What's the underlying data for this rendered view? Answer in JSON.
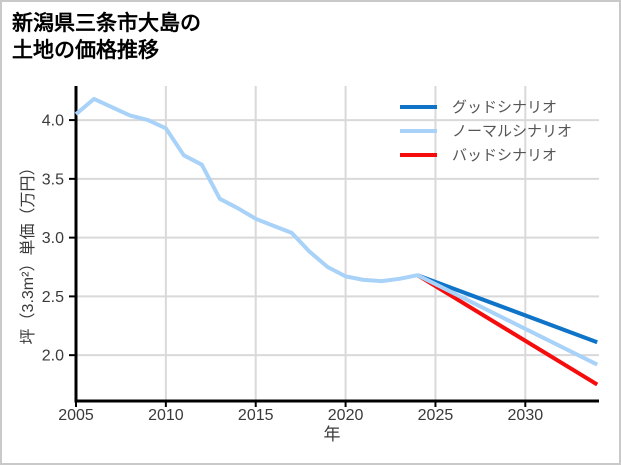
{
  "title": {
    "line1": "新潟県三条市大島の",
    "line2": "土地の価格推移"
  },
  "colors": {
    "good": "#0f74c8",
    "normal": "#a9d2f8",
    "bad": "#f50d0d",
    "grid": "#d9d9d9",
    "axis": "#000000",
    "tick_label": "#3a3a3a",
    "legend_text": "#555555",
    "border": "#c9c9c9",
    "background": "#ffffff"
  },
  "chart_data": {
    "type": "line",
    "title": "新潟県三条市大島の土地の価格推移",
    "xlabel": "年",
    "ylabel": "坪（3.3m²）単価（万円）",
    "x_ticks": [
      2005,
      2010,
      2015,
      2020,
      2025,
      2030
    ],
    "y_ticks": [
      2.0,
      2.5,
      3.0,
      3.5,
      4.0
    ],
    "xlim": [
      2005,
      2034.1
    ],
    "ylim": [
      1.61,
      4.29
    ],
    "grid": true,
    "legend_position": "upper right",
    "series": [
      {
        "name": "バッドシナリオ",
        "color_key": "bad",
        "x": [
          2024,
          2034
        ],
        "values": [
          2.68,
          1.75
        ]
      },
      {
        "name": "グッドシナリオ",
        "color_key": "good",
        "x": [
          2024,
          2034
        ],
        "values": [
          2.68,
          2.11
        ]
      },
      {
        "name": "ノーマルシナリオ",
        "color_key": "normal",
        "x": [
          2005,
          2006,
          2007,
          2008,
          2009,
          2010,
          2011,
          2012,
          2013,
          2014,
          2015,
          2016,
          2017,
          2018,
          2019,
          2020,
          2021,
          2022,
          2023,
          2024,
          2034
        ],
        "values": [
          4.05,
          4.18,
          4.11,
          4.04,
          4.0,
          3.93,
          3.7,
          3.62,
          3.33,
          3.25,
          3.16,
          3.1,
          3.04,
          2.88,
          2.75,
          2.67,
          2.64,
          2.63,
          2.65,
          2.68,
          1.92
        ]
      }
    ],
    "legend": [
      {
        "label": "グッドシナリオ",
        "color_key": "good"
      },
      {
        "label": "ノーマルシナリオ",
        "color_key": "normal"
      },
      {
        "label": "バッドシナリオ",
        "color_key": "bad"
      }
    ]
  }
}
